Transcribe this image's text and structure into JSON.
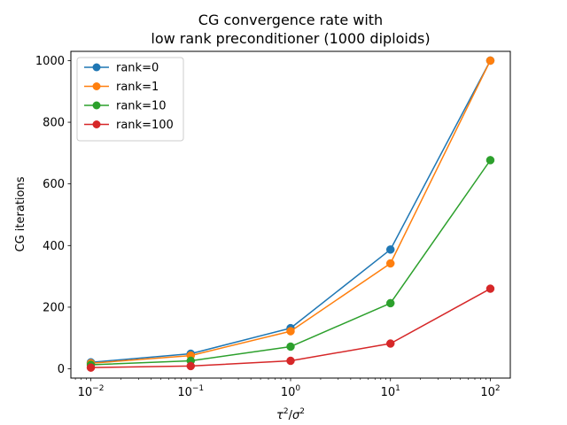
{
  "chart_data": {
    "type": "line",
    "title_line1": "CG convergence rate with",
    "title_line2": "low rank preconditioner (1000 diploids)",
    "xlabel": {
      "base": "τ",
      "sup": "2",
      "slash": "/",
      "base2": "σ",
      "sup2": "2"
    },
    "ylabel": "CG iterations",
    "xscale": "log",
    "x": [
      0.01,
      0.1,
      1,
      10,
      100
    ],
    "xticks": [
      {
        "value": 0.01,
        "base": "10",
        "exp": "−2"
      },
      {
        "value": 0.1,
        "base": "10",
        "exp": "−1"
      },
      {
        "value": 1,
        "base": "10",
        "exp": "0"
      },
      {
        "value": 10,
        "base": "10",
        "exp": "1"
      },
      {
        "value": 100,
        "base": "10",
        "exp": "2"
      }
    ],
    "yticks": [
      0,
      200,
      400,
      600,
      800,
      1000
    ],
    "ylim": [
      -30,
      1030
    ],
    "xlim_log10": [
      -2.2,
      2.2
    ],
    "grid": false,
    "legend_placement": "top-left",
    "series": [
      {
        "name": "rank=0",
        "color": "#1f77b4",
        "values": [
          21,
          49,
          132,
          387,
          1000
        ]
      },
      {
        "name": "rank=1",
        "color": "#ff7f0e",
        "values": [
          18,
          43,
          122,
          342,
          1000
        ]
      },
      {
        "name": "rank=10",
        "color": "#2ca02c",
        "values": [
          13,
          26,
          72,
          213,
          677
        ]
      },
      {
        "name": "rank=100",
        "color": "#d62728",
        "values": [
          4,
          9,
          26,
          82,
          260
        ]
      }
    ]
  }
}
